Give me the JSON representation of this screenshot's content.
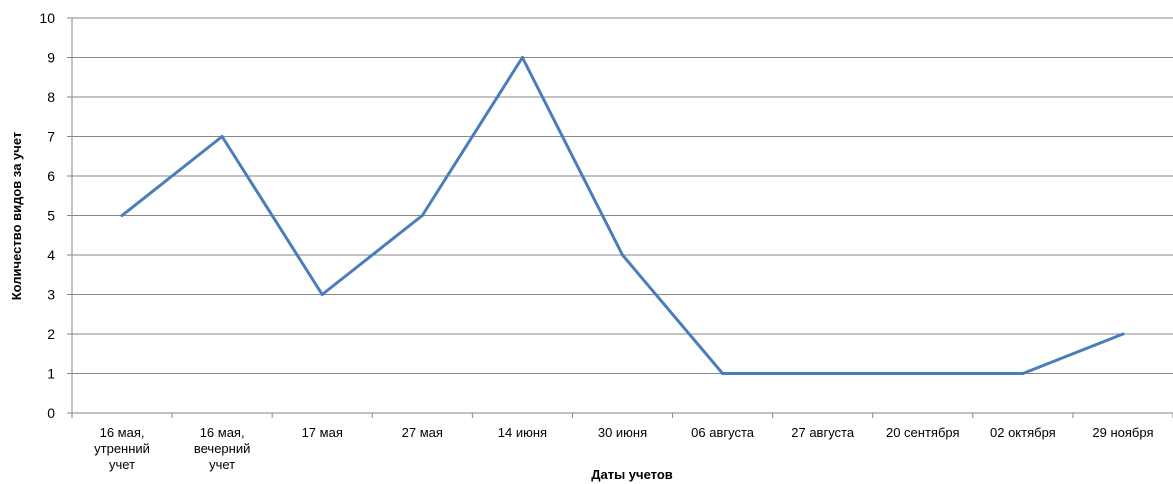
{
  "chart_data": {
    "type": "line",
    "title": "",
    "xlabel": "Даты учетов",
    "ylabel": "Количество видов за учет",
    "ylim": [
      0,
      10
    ],
    "ytick_step": 1,
    "grid": true,
    "legend": "none",
    "categories": [
      [
        "16 мая,",
        "утренний",
        "учет"
      ],
      [
        "16 мая,",
        "вечерний",
        "учет"
      ],
      [
        "17 мая"
      ],
      [
        "27 мая"
      ],
      [
        "14 июня"
      ],
      [
        "30 июня"
      ],
      [
        "06 августа"
      ],
      [
        "27 августа"
      ],
      [
        "20 сентября"
      ],
      [
        "02 октября"
      ],
      [
        "29 ноября"
      ]
    ],
    "series": [
      {
        "values": [
          5,
          7,
          3,
          5,
          9,
          4,
          1,
          1,
          1,
          1,
          2
        ],
        "color": "#4a7ebb"
      }
    ],
    "colors": {
      "grid": "#868686",
      "axis": "#868686",
      "line": "#4a7ebb"
    }
  }
}
